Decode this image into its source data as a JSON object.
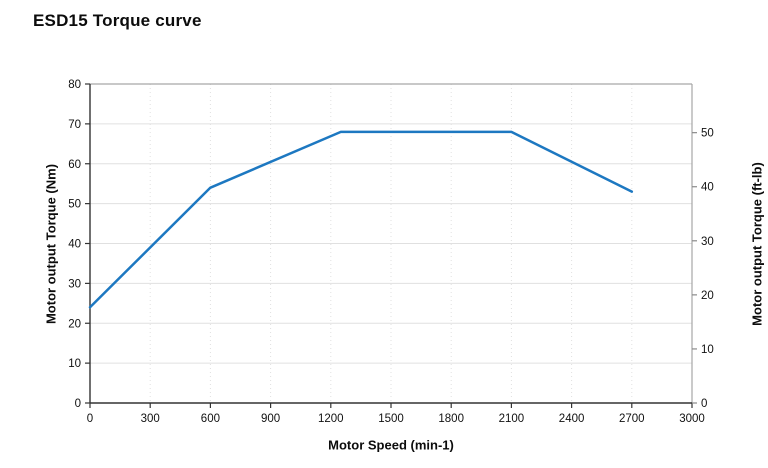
{
  "page": {
    "title": "ESD15 Torque curve"
  },
  "chart_data": {
    "type": "line",
    "title": "ESD15 Torque curve",
    "xlabel": "Motor Speed (min-1)",
    "ylabel_left": "Motor output Torque (Nm)",
    "ylabel_right": "Motor output Torque (ft-lb)",
    "xlim": [
      0,
      3000
    ],
    "ylim_left": [
      0,
      80
    ],
    "ylim_right": [
      0,
      59.0
    ],
    "x_ticks": [
      0,
      300,
      600,
      900,
      1200,
      1500,
      1800,
      2100,
      2400,
      2700,
      3000
    ],
    "y_left_ticks": [
      0,
      10,
      20,
      30,
      40,
      50,
      60,
      70,
      80
    ],
    "y_right_ticks": [
      0,
      10,
      20,
      30,
      40,
      50
    ],
    "nm_to_ftlb_factor": 0.73756,
    "grid": true,
    "legend": false,
    "series": [
      {
        "name": "Motor output torque",
        "unit": "Nm",
        "color": "#1d78c1",
        "points": [
          [
            0,
            24
          ],
          [
            600,
            54
          ],
          [
            1250,
            68
          ],
          [
            2100,
            68
          ],
          [
            2700,
            53
          ]
        ]
      }
    ],
    "style": {
      "grid_color": "#e0e0e0",
      "spine_dark": "#333333",
      "spine_light": "#a6a6a6",
      "right_tick_color": "#8a8a8a"
    }
  }
}
